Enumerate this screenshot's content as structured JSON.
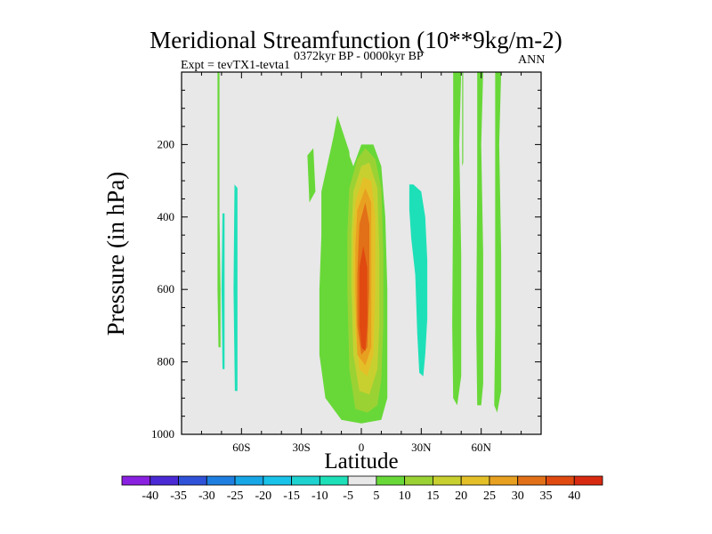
{
  "chart_data": {
    "type": "heatmap",
    "title": "Meridional Streamfunction (10**9kg/m-2)",
    "subtitle_left": "Expt = tevTX1-tevta1",
    "subtitle_center": "0372kyr BP - 0000kyr BP",
    "subtitle_right": "ANN",
    "xlabel": "Latitude",
    "ylabel": "Pressure (in hPa)",
    "x_ticks": [
      {
        "value": -60,
        "label": "60S"
      },
      {
        "value": -30,
        "label": "30S"
      },
      {
        "value": 0,
        "label": "0"
      },
      {
        "value": 30,
        "label": "30N"
      },
      {
        "value": 60,
        "label": "60N"
      }
    ],
    "y_ticks": [
      {
        "value": 200,
        "label": "200"
      },
      {
        "value": 400,
        "label": "400"
      },
      {
        "value": 600,
        "label": "600"
      },
      {
        "value": 800,
        "label": "800"
      },
      {
        "value": 1000,
        "label": "1000"
      }
    ],
    "xlim": [
      -90,
      90
    ],
    "ylim": [
      1000,
      0
    ],
    "background_color": "#e8e8e8",
    "colorbar": {
      "labels": [
        "-40",
        "-35",
        "-30",
        "-25",
        "-20",
        "-15",
        "-10",
        "-5",
        "5",
        "10",
        "15",
        "20",
        "25",
        "30",
        "35",
        "40"
      ],
      "colors": [
        "#8a20e0",
        "#4b2ad6",
        "#2f52d8",
        "#1e7fe0",
        "#17a6e6",
        "#18c2e8",
        "#1ed2d0",
        "#1ee0b8",
        "#e8e8e8",
        "#68d838",
        "#9ad234",
        "#c8d030",
        "#e4c028",
        "#e8a020",
        "#e27018",
        "#e04a10",
        "#d82a10"
      ]
    },
    "regions": [
      {
        "name": "sh-polar-thin-band",
        "level": 5,
        "points": [
          [
            -72,
            0
          ],
          [
            -71,
            0
          ],
          [
            -71,
            160
          ],
          [
            -71,
            400
          ],
          [
            -70.5,
            600
          ],
          [
            -70.5,
            760
          ],
          [
            -71.5,
            760
          ],
          [
            -72,
            600
          ],
          [
            -72,
            300
          ]
        ]
      },
      {
        "name": "sh-negative-band-a",
        "level": -5,
        "points": [
          [
            -69.5,
            390
          ],
          [
            -68.5,
            390
          ],
          [
            -68.5,
            560
          ],
          [
            -68.5,
            820
          ],
          [
            -69.5,
            820
          ],
          [
            -70,
            600
          ]
        ]
      },
      {
        "name": "sh-negative-band-b",
        "level": -5,
        "points": [
          [
            -63.5,
            310
          ],
          [
            -62,
            320
          ],
          [
            -62,
            600
          ],
          [
            -62,
            880
          ],
          [
            -63.3,
            880
          ],
          [
            -64,
            600
          ]
        ]
      },
      {
        "name": "tropics-outer-left",
        "level": 5,
        "points": [
          [
            -18,
            300
          ],
          [
            -12,
            120
          ],
          [
            -6,
            220
          ],
          [
            -5,
            320
          ]
        ]
      },
      {
        "name": "small-patch-left",
        "level": 5,
        "points": [
          [
            -27,
            230
          ],
          [
            -24,
            210
          ],
          [
            -23,
            330
          ],
          [
            -26,
            360
          ]
        ]
      },
      {
        "name": "hadley-5",
        "level": 5,
        "points": [
          [
            -20,
            330
          ],
          [
            -14,
            180
          ],
          [
            -8,
            200
          ],
          [
            -4,
            260
          ],
          [
            0,
            200
          ],
          [
            6,
            200
          ],
          [
            10,
            260
          ],
          [
            12,
            400
          ],
          [
            13,
            600
          ],
          [
            13,
            900
          ],
          [
            10,
            960
          ],
          [
            0,
            970
          ],
          [
            -10,
            960
          ],
          [
            -18,
            900
          ],
          [
            -21,
            780
          ],
          [
            -21,
            600
          ],
          [
            -20,
            450
          ]
        ]
      },
      {
        "name": "hadley-10",
        "level": 10,
        "points": [
          [
            -6,
            320
          ],
          [
            -2,
            240
          ],
          [
            2,
            210
          ],
          [
            7,
            240
          ],
          [
            10,
            320
          ],
          [
            11,
            500
          ],
          [
            11,
            700
          ],
          [
            10,
            850
          ],
          [
            8,
            920
          ],
          [
            3,
            940
          ],
          [
            -3,
            930
          ],
          [
            -6,
            820
          ],
          [
            -7,
            600
          ],
          [
            -7,
            450
          ]
        ]
      },
      {
        "name": "hadley-15",
        "level": 15,
        "points": [
          [
            -4,
            330
          ],
          [
            0,
            260
          ],
          [
            4,
            250
          ],
          [
            8,
            320
          ],
          [
            9,
            500
          ],
          [
            9,
            700
          ],
          [
            8,
            820
          ],
          [
            4,
            890
          ],
          [
            -1,
            880
          ],
          [
            -4,
            780
          ],
          [
            -5,
            600
          ],
          [
            -5,
            450
          ]
        ]
      },
      {
        "name": "hadley-20",
        "level": 20,
        "points": [
          [
            -3,
            360
          ],
          [
            1,
            290
          ],
          [
            5,
            300
          ],
          [
            7,
            400
          ],
          [
            7,
            600
          ],
          [
            6,
            780
          ],
          [
            3,
            840
          ],
          [
            -1,
            820
          ],
          [
            -3,
            720
          ],
          [
            -4,
            560
          ],
          [
            -4,
            450
          ]
        ]
      },
      {
        "name": "hadley-25",
        "level": 25,
        "points": [
          [
            -2,
            380
          ],
          [
            2,
            320
          ],
          [
            5,
            360
          ],
          [
            5,
            560
          ],
          [
            5,
            760
          ],
          [
            2,
            810
          ],
          [
            -2,
            780
          ],
          [
            -3,
            600
          ],
          [
            -3,
            480
          ]
        ]
      },
      {
        "name": "hadley-30",
        "level": 30,
        "points": [
          [
            -1,
            420
          ],
          [
            2,
            360
          ],
          [
            4,
            420
          ],
          [
            4,
            600
          ],
          [
            3,
            760
          ],
          [
            0,
            780
          ],
          [
            -2,
            700
          ],
          [
            -2,
            560
          ]
        ]
      },
      {
        "name": "hadley-35",
        "level": 35,
        "points": [
          [
            -1,
            540
          ],
          [
            1,
            480
          ],
          [
            3,
            540
          ],
          [
            3,
            700
          ],
          [
            2,
            770
          ],
          [
            0,
            760
          ],
          [
            -1,
            700
          ]
        ]
      },
      {
        "name": "nh-negative-blob",
        "level": -5,
        "points": [
          [
            24,
            310
          ],
          [
            26,
            310
          ],
          [
            30,
            330
          ],
          [
            32,
            400
          ],
          [
            33,
            520
          ],
          [
            33,
            680
          ],
          [
            32,
            780
          ],
          [
            31,
            840
          ],
          [
            29,
            830
          ],
          [
            28,
            720
          ],
          [
            27,
            560
          ],
          [
            25,
            460
          ],
          [
            24,
            380
          ]
        ]
      },
      {
        "name": "nh-green-band-1",
        "level": 5,
        "points": [
          [
            46,
            0
          ],
          [
            50,
            0
          ],
          [
            49,
            200
          ],
          [
            50,
            500
          ],
          [
            50,
            840
          ],
          [
            48,
            920
          ],
          [
            46,
            900
          ],
          [
            45.5,
            700
          ],
          [
            46,
            300
          ]
        ]
      },
      {
        "name": "nh-green-band-2",
        "level": 5,
        "points": [
          [
            58,
            0
          ],
          [
            61,
            0
          ],
          [
            60,
            200
          ],
          [
            61,
            500
          ],
          [
            61,
            860
          ],
          [
            60,
            920
          ],
          [
            58,
            920
          ],
          [
            57.5,
            700
          ],
          [
            58,
            300
          ]
        ]
      },
      {
        "name": "nh-green-band-3",
        "level": 5,
        "points": [
          [
            67,
            0
          ],
          [
            70,
            0
          ],
          [
            69,
            200
          ],
          [
            70,
            500
          ],
          [
            70,
            880
          ],
          [
            68,
            940
          ],
          [
            66.5,
            920
          ],
          [
            67,
            700
          ],
          [
            67,
            300
          ]
        ]
      },
      {
        "name": "nh-green-band-1b",
        "level": 5,
        "points": [
          [
            50.5,
            0
          ],
          [
            51,
            0
          ],
          [
            51,
            250
          ],
          [
            50.5,
            260
          ]
        ]
      }
    ]
  }
}
